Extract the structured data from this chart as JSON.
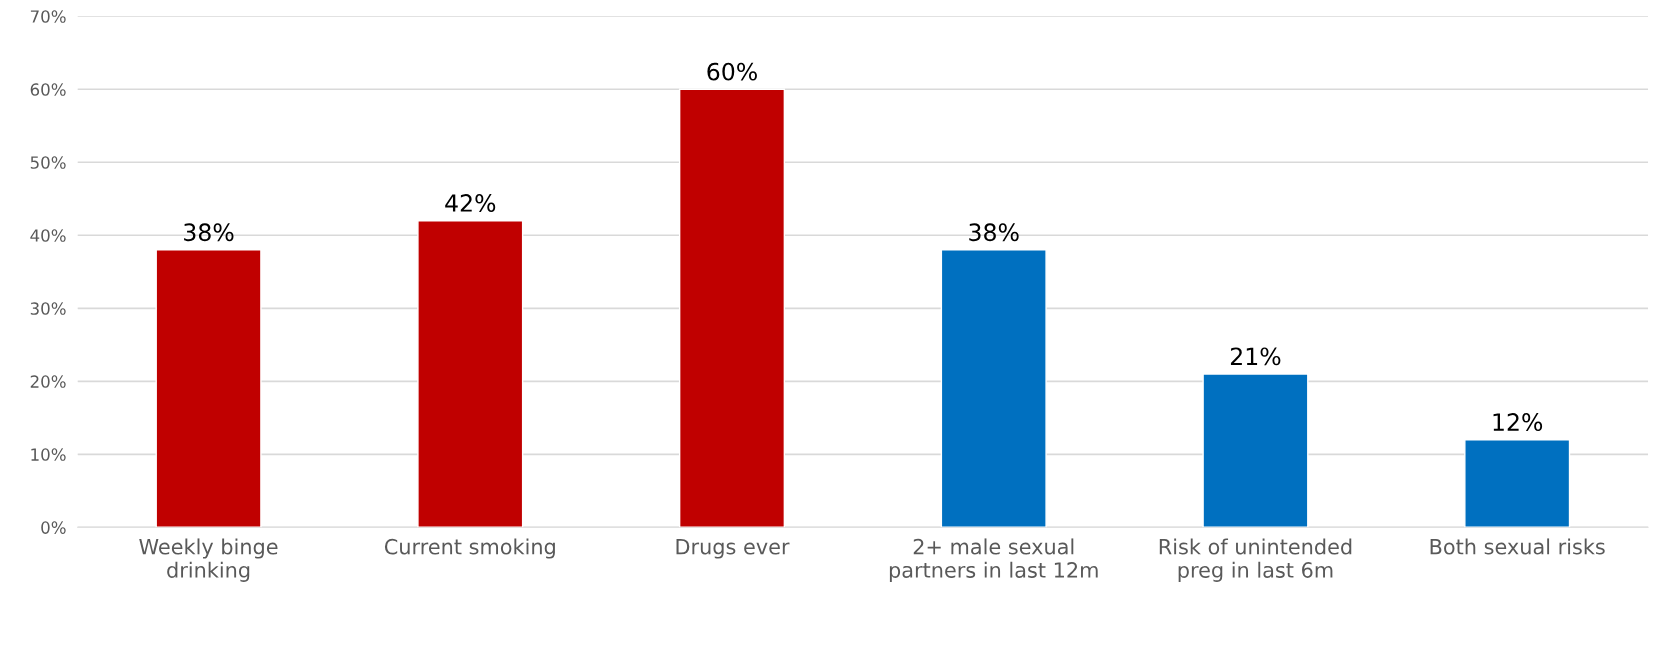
{
  "chart_data": {
    "type": "bar",
    "categories": [
      "Weekly binge drinking",
      "Current smoking",
      "Drugs ever",
      "2+ male sexual partners in last 12m",
      "Risk of unintended preg in last 6m",
      "Both sexual risks"
    ],
    "values": [
      38,
      42,
      60,
      38,
      21,
      12
    ],
    "colors": [
      "#c00000",
      "#c00000",
      "#c00000",
      "#0070c0",
      "#0070c0",
      "#0070c0"
    ],
    "value_labels": [
      "38%",
      "42%",
      "60%",
      "38%",
      "21%",
      "12%"
    ],
    "ylim": [
      0,
      70
    ],
    "yticks": [
      {
        "value": 0,
        "label": "0%"
      },
      {
        "value": 10,
        "label": "10%"
      },
      {
        "value": 20,
        "label": "20%"
      },
      {
        "value": 30,
        "label": "30%"
      },
      {
        "value": 40,
        "label": "40%"
      },
      {
        "value": 50,
        "label": "50%"
      },
      {
        "value": 60,
        "label": "60%"
      },
      {
        "value": 70,
        "label": "70%"
      }
    ],
    "grid": "y",
    "legend": false
  }
}
